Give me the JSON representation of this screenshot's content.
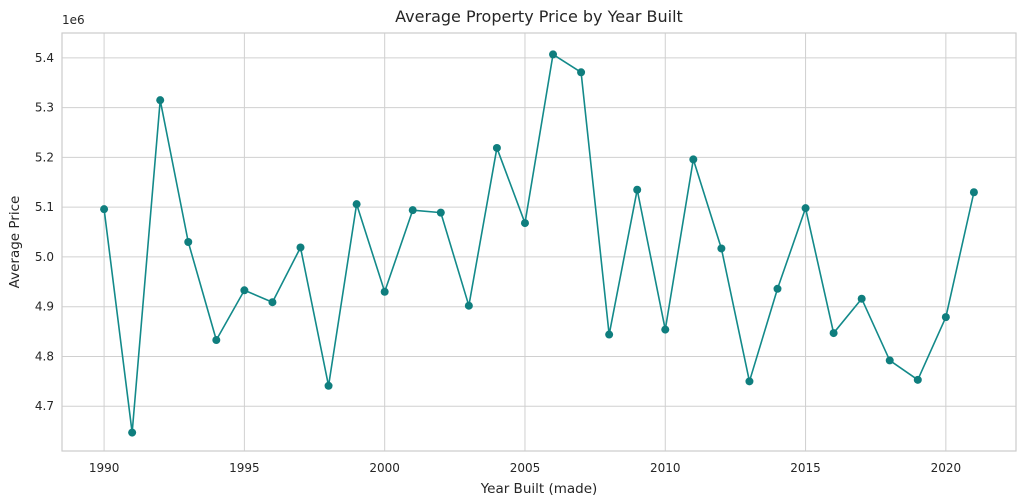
{
  "chart_data": {
    "type": "line",
    "title": "Average Property Price by Year Built",
    "xlabel": "Year Built (made)",
    "ylabel": "Average Price",
    "y_offset_label": "1e6",
    "xlim": [
      1988.5,
      2022.5
    ],
    "ylim": [
      4.61,
      5.45
    ],
    "x_ticks": [
      1990,
      1995,
      2000,
      2005,
      2010,
      2015,
      2020
    ],
    "x_tick_labels": [
      "1990",
      "1995",
      "2000",
      "2005",
      "2010",
      "2015",
      "2020"
    ],
    "y_ticks": [
      4.7,
      4.8,
      4.9,
      5.0,
      5.1,
      5.2,
      5.3,
      5.4
    ],
    "y_tick_labels": [
      "4.7",
      "4.8",
      "4.9",
      "5.0",
      "5.1",
      "5.2",
      "5.3",
      "5.4"
    ],
    "grid": true,
    "line_color": "#138a8a",
    "marker_color": "#0f7e7e",
    "series": [
      {
        "x": [
          1990,
          1991,
          1992,
          1993,
          1994,
          1995,
          1996,
          1997,
          1998,
          1999,
          2000,
          2001,
          2002,
          2003,
          2004,
          2005,
          2006,
          2007,
          2008,
          2009,
          2010,
          2011,
          2012,
          2013,
          2014,
          2015,
          2016,
          2017,
          2018,
          2019,
          2020,
          2021
        ],
        "values": [
          5.096,
          4.647,
          5.315,
          5.03,
          4.833,
          4.933,
          4.909,
          5.019,
          4.741,
          5.106,
          4.93,
          5.094,
          5.089,
          4.902,
          5.219,
          5.068,
          5.407,
          5.371,
          4.844,
          5.135,
          4.854,
          5.196,
          5.017,
          4.75,
          4.936,
          5.098,
          4.847,
          4.916,
          4.792,
          4.753,
          4.879,
          5.13
        ]
      }
    ]
  }
}
